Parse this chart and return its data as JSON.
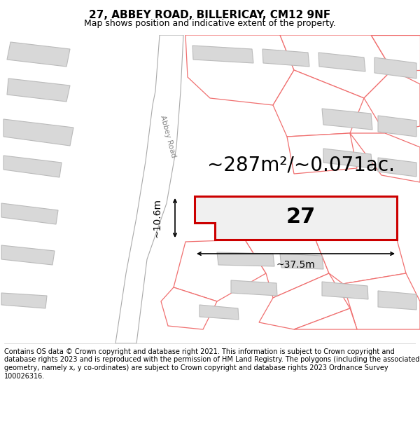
{
  "title": "27, ABBEY ROAD, BILLERICAY, CM12 9NF",
  "subtitle": "Map shows position and indicative extent of the property.",
  "footer": "Contains OS data © Crown copyright and database right 2021. This information is subject to Crown copyright and database rights 2023 and is reproduced with the permission of HM Land Registry. The polygons (including the associated geometry, namely x, y co-ordinates) are subject to Crown copyright and database rights 2023 Ordnance Survey 100026316.",
  "area_label": "~287m²/~0.071ac.",
  "plot_number": "27",
  "dim_width": "~37.5m",
  "dim_height": "~10.6m",
  "road_label": "Abbey Road",
  "bg_color": "#ffffff",
  "map_bg": "#ffffff",
  "building_fill": "#d8d8d8",
  "building_stroke": "#bbbbbb",
  "plot_fill": "#f0f0f0",
  "plot_stroke": "#cc0000",
  "parcel_stroke": "#f07070",
  "parcel_fill": "#ffffff",
  "road_fill": "#ffffff",
  "road_stroke": "#aaaaaa",
  "title_fontsize": 11,
  "subtitle_fontsize": 9,
  "footer_fontsize": 7,
  "area_fontsize": 20,
  "plot_num_fontsize": 22,
  "dim_fontsize": 10
}
